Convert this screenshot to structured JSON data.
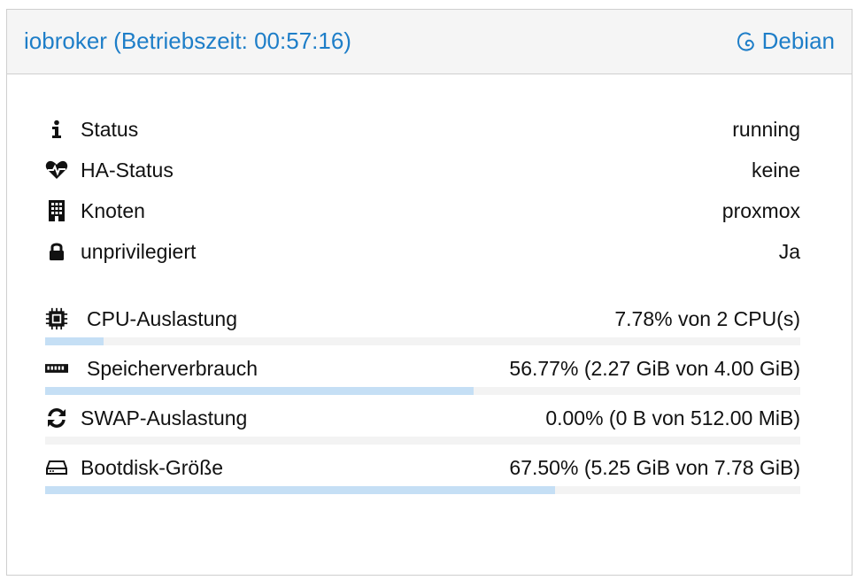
{
  "header": {
    "title": "iobroker (Betriebszeit: 00:57:16)",
    "os_label": "Debian",
    "os_icon": "debian-swirl-icon",
    "accent_color": "#1e7ec8"
  },
  "info_rows": [
    {
      "icon": "info-icon",
      "label": "Status",
      "value": "running"
    },
    {
      "icon": "heartbeat-icon",
      "label": "HA-Status",
      "value": "keine"
    },
    {
      "icon": "building-icon",
      "label": "Knoten",
      "value": "proxmox"
    },
    {
      "icon": "lock-icon",
      "label": "unprivilegiert",
      "value": "Ja"
    }
  ],
  "usage_rows": [
    {
      "icon": "cpu-chip-icon",
      "label": "CPU-Auslastung",
      "value": "7.78% von 2 CPU(s)",
      "fraction": 0.0778
    },
    {
      "icon": "memory-icon",
      "label": "Speicherverbrauch",
      "value": "56.77% (2.27 GiB von 4.00 GiB)",
      "fraction": 0.5677
    },
    {
      "icon": "refresh-icon",
      "label": "SWAP-Auslastung",
      "value": "0.00% (0 B von 512.00 MiB)",
      "fraction": 0.0
    },
    {
      "icon": "hdd-icon",
      "label": "Bootdisk-Größe",
      "value": "67.50% (5.25 GiB von 7.78 GiB)",
      "fraction": 0.675
    }
  ],
  "bar_fill_color": "#c5dff5"
}
